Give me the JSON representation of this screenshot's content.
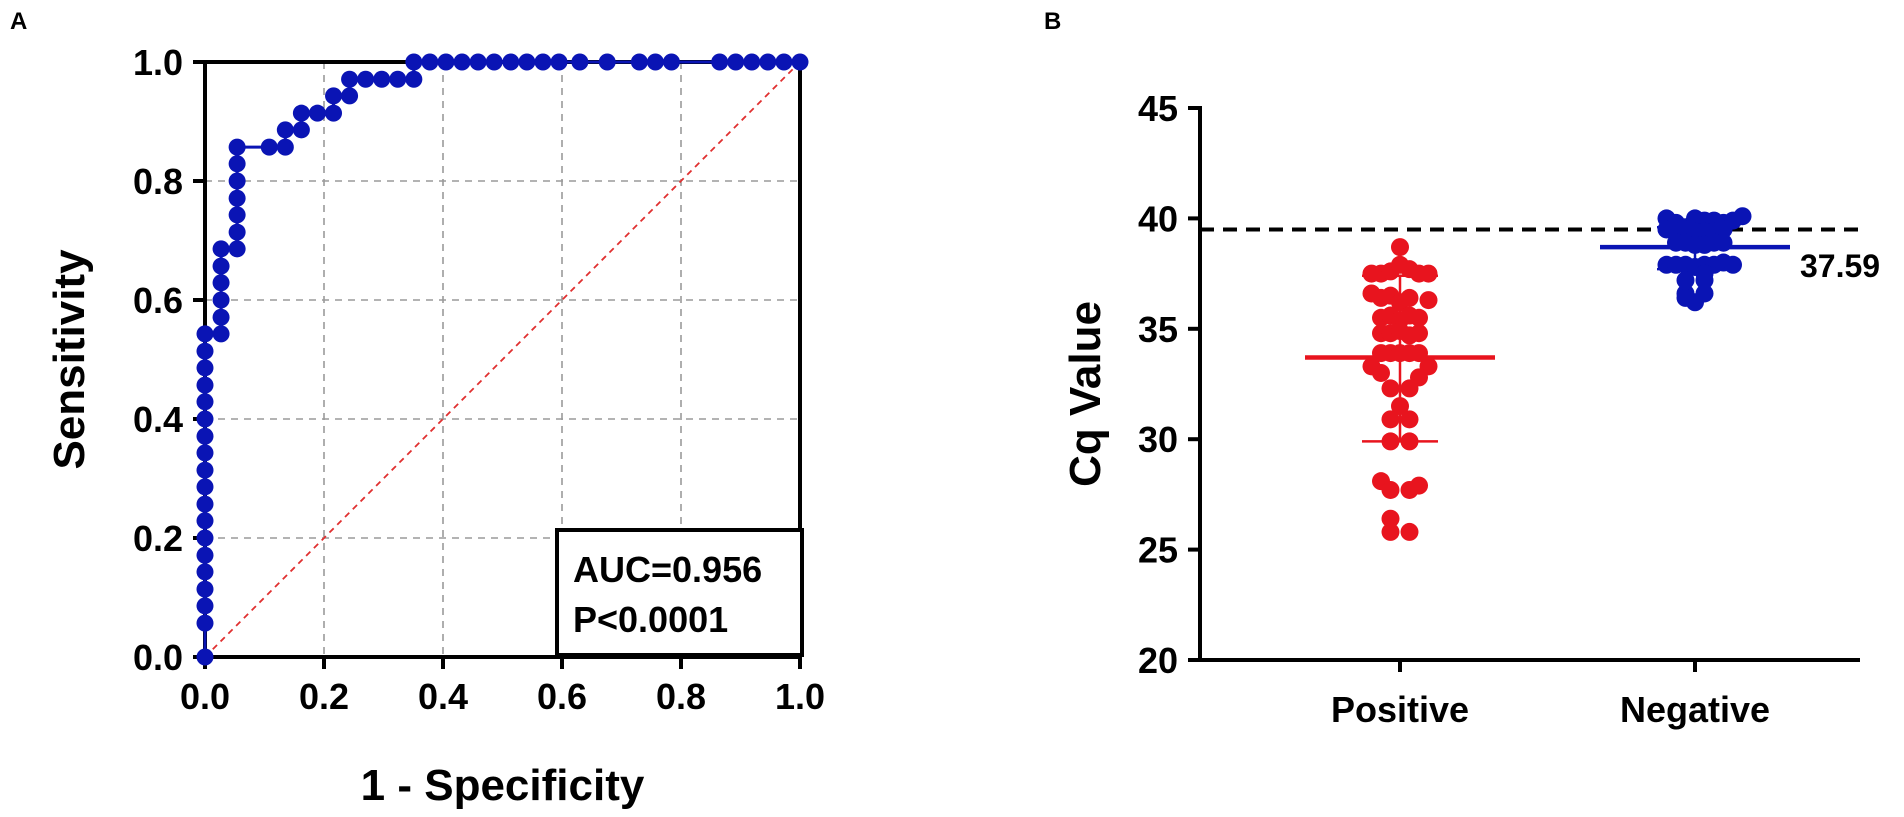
{
  "panels": {
    "a_label": "A",
    "b_label": "B"
  },
  "chart_data": [
    {
      "panel": "A",
      "type": "line",
      "title": "",
      "xlabel": "1 - Specificity",
      "ylabel": "Sensitivity",
      "xlim": [
        0,
        1
      ],
      "ylim": [
        0,
        1
      ],
      "xticks": [
        "0.0",
        "0.2",
        "0.4",
        "0.6",
        "0.8",
        "1.0"
      ],
      "yticks": [
        "0.0",
        "0.2",
        "0.4",
        "0.6",
        "0.8",
        "1.0"
      ],
      "grid": true,
      "annotation_lines": [
        "AUC=0.956",
        "P<0.0001"
      ],
      "annotation_position": "bottom-right",
      "reference_line": {
        "from": [
          0,
          0
        ],
        "to": [
          1,
          1
        ],
        "style": "dashed",
        "color": "#e03030"
      },
      "series": [
        {
          "name": "ROC",
          "color": "#0a14b4",
          "points": [
            [
              0,
              0
            ],
            [
              0,
              0.057
            ],
            [
              0,
              0.086
            ],
            [
              0,
              0.114
            ],
            [
              0,
              0.143
            ],
            [
              0,
              0.171
            ],
            [
              0,
              0.2
            ],
            [
              0,
              0.229
            ],
            [
              0,
              0.257
            ],
            [
              0,
              0.286
            ],
            [
              0,
              0.314
            ],
            [
              0,
              0.343
            ],
            [
              0,
              0.371
            ],
            [
              0,
              0.4
            ],
            [
              0,
              0.429
            ],
            [
              0,
              0.457
            ],
            [
              0,
              0.486
            ],
            [
              0,
              0.514
            ],
            [
              0,
              0.543
            ],
            [
              0.027,
              0.543
            ],
            [
              0.027,
              0.571
            ],
            [
              0.027,
              0.6
            ],
            [
              0.027,
              0.629
            ],
            [
              0.027,
              0.657
            ],
            [
              0.027,
              0.686
            ],
            [
              0.054,
              0.686
            ],
            [
              0.054,
              0.714
            ],
            [
              0.054,
              0.743
            ],
            [
              0.054,
              0.771
            ],
            [
              0.054,
              0.8
            ],
            [
              0.054,
              0.829
            ],
            [
              0.054,
              0.857
            ],
            [
              0.108,
              0.857
            ],
            [
              0.135,
              0.857
            ],
            [
              0.135,
              0.886
            ],
            [
              0.162,
              0.886
            ],
            [
              0.162,
              0.914
            ],
            [
              0.189,
              0.914
            ],
            [
              0.216,
              0.914
            ],
            [
              0.216,
              0.943
            ],
            [
              0.243,
              0.943
            ],
            [
              0.243,
              0.971
            ],
            [
              0.27,
              0.971
            ],
            [
              0.297,
              0.971
            ],
            [
              0.324,
              0.971
            ],
            [
              0.351,
              0.971
            ],
            [
              0.351,
              1
            ],
            [
              0.378,
              1
            ],
            [
              0.405,
              1
            ],
            [
              0.432,
              1
            ],
            [
              0.459,
              1
            ],
            [
              0.486,
              1
            ],
            [
              0.514,
              1
            ],
            [
              0.541,
              1
            ],
            [
              0.568,
              1
            ],
            [
              0.595,
              1
            ],
            [
              0.63,
              1
            ],
            [
              0.676,
              1
            ],
            [
              0.73,
              1
            ],
            [
              0.757,
              1
            ],
            [
              0.784,
              1
            ],
            [
              0.865,
              1
            ],
            [
              0.892,
              1
            ],
            [
              0.919,
              1
            ],
            [
              0.946,
              1
            ],
            [
              0.973,
              1
            ],
            [
              1,
              1
            ]
          ]
        }
      ]
    },
    {
      "panel": "B",
      "type": "scatter",
      "title": "",
      "xlabel": "",
      "ylabel": "Cq Value",
      "ylim": [
        20,
        45
      ],
      "yticks": [
        "20",
        "25",
        "30",
        "35",
        "40",
        "45"
      ],
      "categories": [
        "Positive",
        "Negative"
      ],
      "grid": false,
      "cutoff_line": {
        "value": 39.5,
        "style": "dashed",
        "color": "#000000"
      },
      "data_label": "37.59",
      "series": [
        {
          "name": "Positive",
          "color": "#e8141e",
          "mean": 33.7,
          "sd_low": 29.9,
          "sd_high": 37.4,
          "points": [
            [
              0,
              38.7
            ],
            [
              -0.3,
              37.5
            ],
            [
              -0.2,
              37.5
            ],
            [
              -0.1,
              37.6
            ],
            [
              0,
              37.9
            ],
            [
              0.1,
              37.7
            ],
            [
              0.2,
              37.5
            ],
            [
              0.3,
              37.5
            ],
            [
              -0.3,
              36.6
            ],
            [
              -0.2,
              36.4
            ],
            [
              -0.1,
              36.5
            ],
            [
              0,
              36.2
            ],
            [
              0.1,
              36.4
            ],
            [
              0.3,
              36.3
            ],
            [
              -0.2,
              35.5
            ],
            [
              -0.1,
              35.6
            ],
            [
              0,
              35.4
            ],
            [
              0.1,
              35.6
            ],
            [
              0.2,
              35.5
            ],
            [
              -0.2,
              34.8
            ],
            [
              -0.1,
              34.8
            ],
            [
              0,
              34.9
            ],
            [
              0.1,
              34.7
            ],
            [
              0.2,
              34.8
            ],
            [
              -0.3,
              33.3
            ],
            [
              -0.2,
              33.9
            ],
            [
              -0.1,
              33.9
            ],
            [
              0,
              33.9
            ],
            [
              0.1,
              33.9
            ],
            [
              0.2,
              33.9
            ],
            [
              0.3,
              33.3
            ],
            [
              -0.2,
              33.0
            ],
            [
              0.2,
              32.8
            ],
            [
              -0.1,
              32.3
            ],
            [
              0.1,
              32.3
            ],
            [
              0,
              31.5
            ],
            [
              -0.1,
              30.9
            ],
            [
              0.1,
              30.9
            ],
            [
              -0.1,
              29.9
            ],
            [
              0.1,
              29.9
            ],
            [
              -0.2,
              28.1
            ],
            [
              0.2,
              27.9
            ],
            [
              -0.1,
              27.7
            ],
            [
              0.1,
              27.7
            ],
            [
              -0.1,
              26.4
            ],
            [
              -0.1,
              25.8
            ],
            [
              0.1,
              25.8
            ]
          ]
        },
        {
          "name": "Negative",
          "color": "#0a14b4",
          "mean": 38.7,
          "sd_low": 37.7,
          "sd_high": 39.6,
          "points": [
            [
              -0.3,
              40.0
            ],
            [
              -0.2,
              39.8
            ],
            [
              -0.1,
              39.6
            ],
            [
              0,
              40.0
            ],
            [
              0.1,
              39.9
            ],
            [
              0.2,
              39.9
            ],
            [
              0.3,
              39.8
            ],
            [
              0.4,
              39.9
            ],
            [
              0.5,
              40.1
            ],
            [
              -0.3,
              39.5
            ],
            [
              -0.2,
              39.4
            ],
            [
              -0.1,
              39.5
            ],
            [
              0,
              39.4
            ],
            [
              0.1,
              39.4
            ],
            [
              0.2,
              39.4
            ],
            [
              0.3,
              39.5
            ],
            [
              -0.2,
              38.9
            ],
            [
              -0.1,
              38.9
            ],
            [
              0,
              38.8
            ],
            [
              0.1,
              38.8
            ],
            [
              0.2,
              38.9
            ],
            [
              0.3,
              38.9
            ],
            [
              -0.3,
              37.9
            ],
            [
              -0.2,
              37.9
            ],
            [
              -0.1,
              37.9
            ],
            [
              0,
              37.8
            ],
            [
              0.1,
              37.9
            ],
            [
              0.2,
              37.9
            ],
            [
              0.3,
              38.0
            ],
            [
              0.4,
              37.9
            ],
            [
              0.1,
              37.5
            ],
            [
              -0.1,
              37.2
            ],
            [
              0.1,
              37.2
            ],
            [
              -0.1,
              36.6
            ],
            [
              0.1,
              36.6
            ],
            [
              0,
              36.2
            ],
            [
              -0.1,
              36.4
            ]
          ]
        }
      ]
    }
  ]
}
